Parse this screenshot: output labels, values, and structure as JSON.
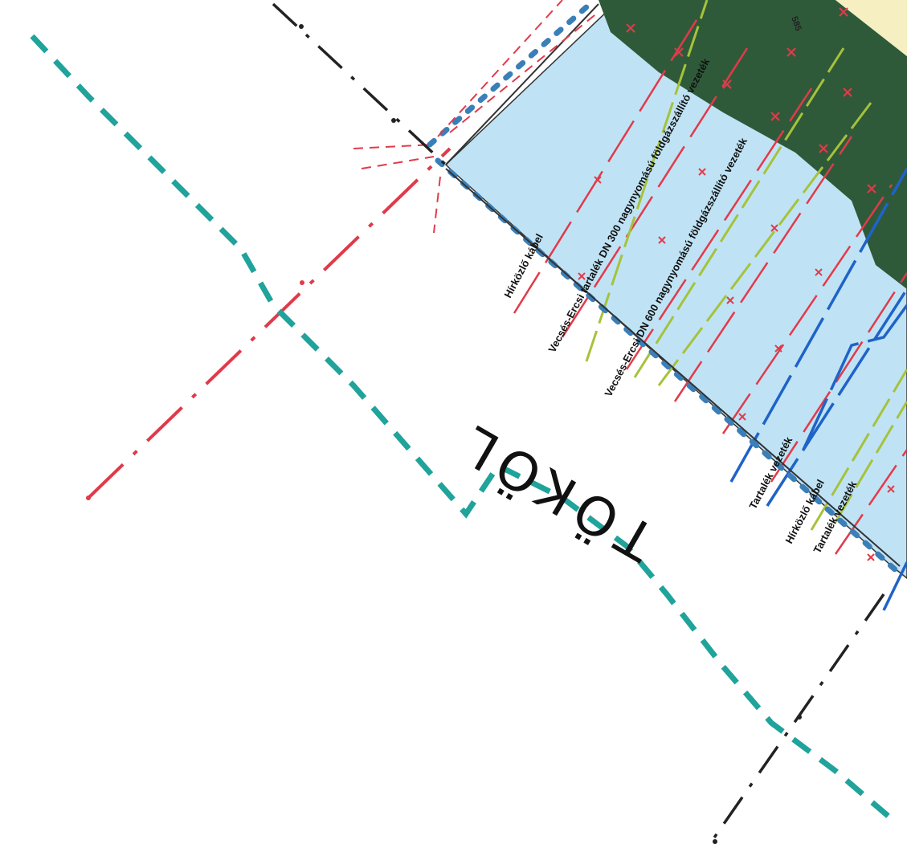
{
  "map": {
    "place_name": "TÖKÖL",
    "corner_number": "585",
    "labels": [
      "Hírközlő kábel",
      "Vecsés-Ercsi tartalék DN 300 nagynyomású földgázszállító vezeték",
      "Vecsés-Ercsi DN 600 nagynyomású földgázszállító vezeték",
      "Tartalék vezeték",
      "Hírközlő kábel",
      "Tartalék vezeték"
    ]
  },
  "colors": {
    "water": "#bfe3f5",
    "forest": "#2f5a3a",
    "boundary_teal": "#1fa39b",
    "boundary_red": "#e03a4a",
    "pipeline_red": "#e23a4a",
    "pipeline_green": "#a6c23a",
    "pipeline_blue": "#1f63c8",
    "admin_black": "#222222",
    "cable_blue": "#3a7fb8"
  }
}
